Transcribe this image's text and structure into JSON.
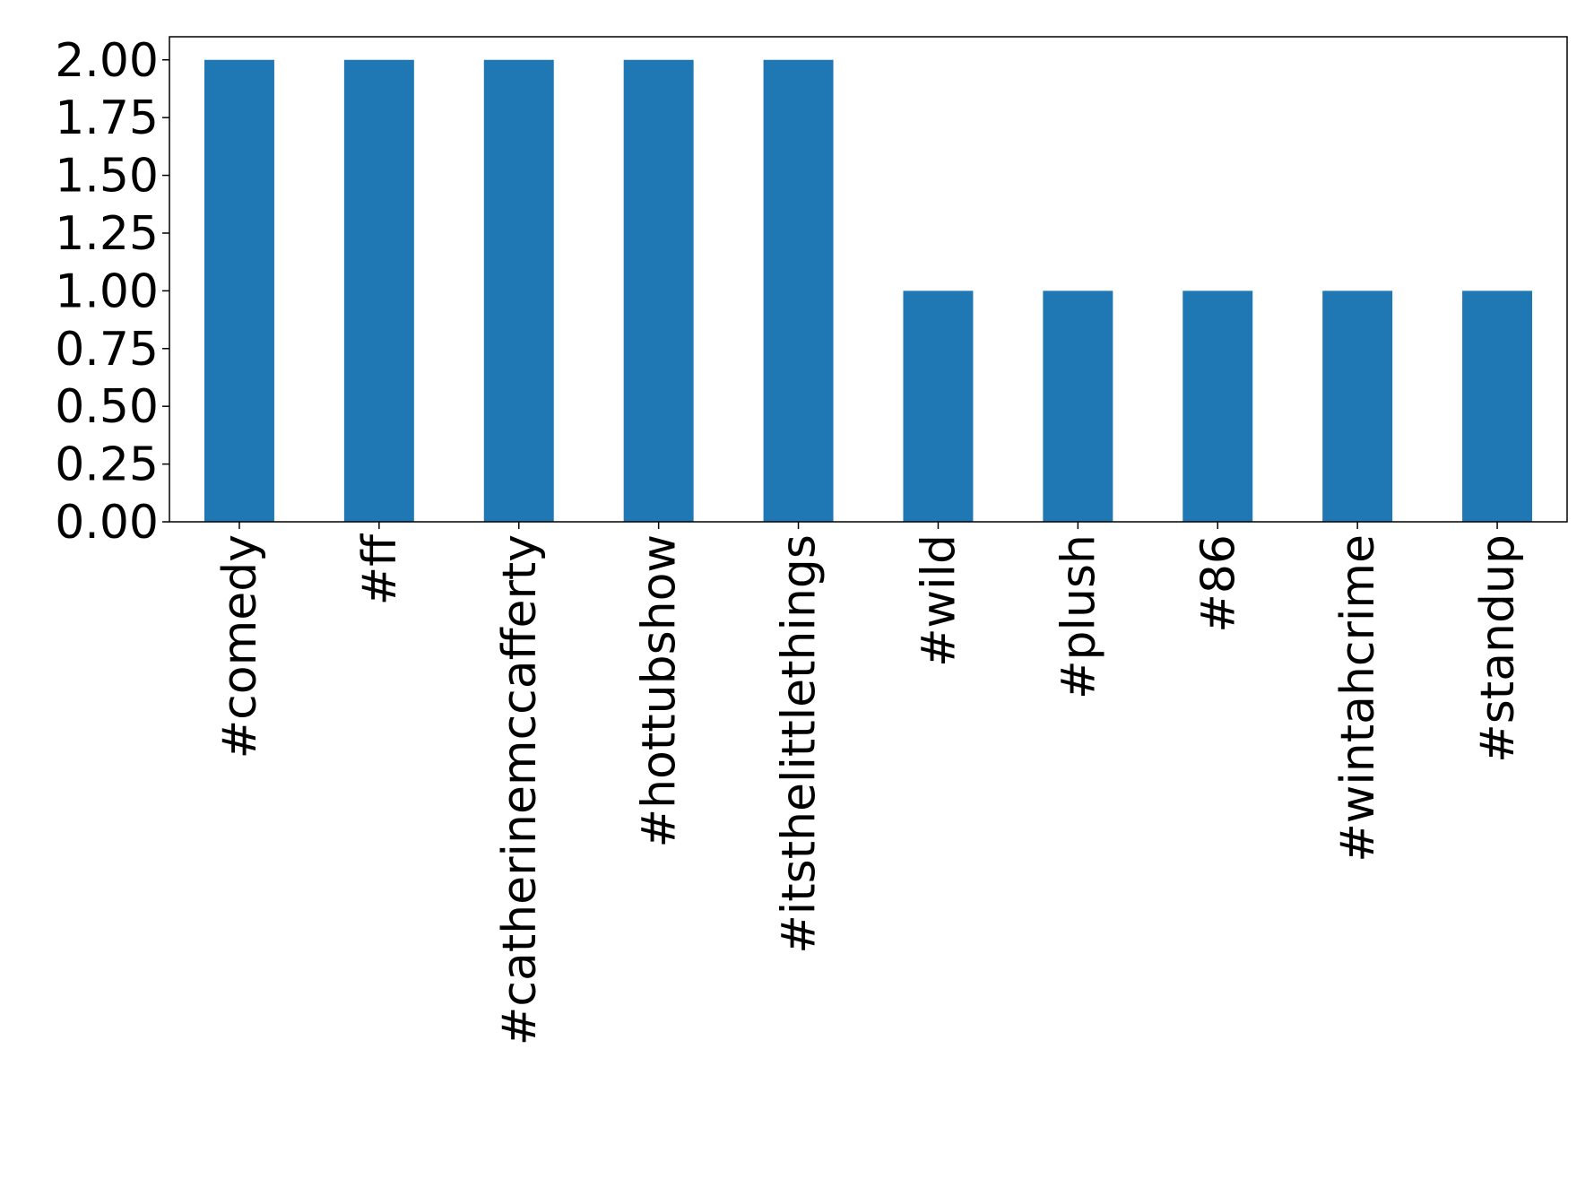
{
  "chart_data": {
    "type": "bar",
    "categories": [
      "#comedy",
      "#ff",
      "#catherinemccafferty",
      "#hottubshow",
      "#itsthelittlethings",
      "#wild",
      "#plush",
      "#86",
      "#wintahcrime",
      "#standup"
    ],
    "values": [
      2,
      2,
      2,
      2,
      2,
      1,
      1,
      1,
      1,
      1
    ],
    "color": "#1f77b4",
    "ylim": [
      0,
      2.1
    ],
    "yticks": [
      {
        "value": 0,
        "label": "0.00"
      },
      {
        "value": 0.25,
        "label": "0.25"
      },
      {
        "value": 0.5,
        "label": "0.50"
      },
      {
        "value": 0.75,
        "label": "0.75"
      },
      {
        "value": 1,
        "label": "1.00"
      },
      {
        "value": 1.25,
        "label": "1.25"
      },
      {
        "value": 1.5,
        "label": "1.50"
      },
      {
        "value": 1.75,
        "label": "1.75"
      },
      {
        "value": 2,
        "label": "2.00"
      }
    ],
    "grid": false
  }
}
